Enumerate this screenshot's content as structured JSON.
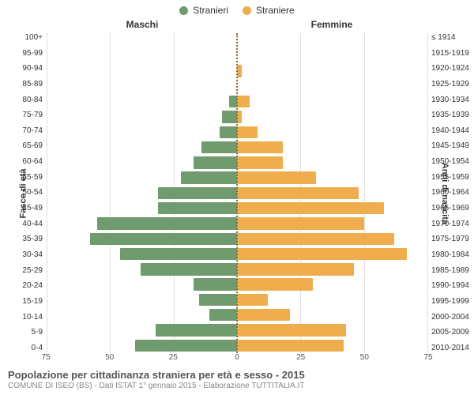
{
  "legend": {
    "items": [
      {
        "label": "Stranieri",
        "color": "#6f9b6e"
      },
      {
        "label": "Straniere",
        "color": "#f0ad4e"
      }
    ]
  },
  "headers": {
    "left": "Maschi",
    "right": "Femmine"
  },
  "yaxis": {
    "left_label": "Fasce di età",
    "right_label": "Anni di nascita"
  },
  "chart": {
    "type": "population-pyramid",
    "xlim": 75,
    "xtick_step": 25,
    "grid_color": "#e0e0e0",
    "center_line_color": "#8a6d3b",
    "bar_height_pct": 80,
    "male_color": "#6f9b6e",
    "female_color": "#f0ad4e",
    "rows": [
      {
        "age": "100+",
        "year": "≤ 1914",
        "m": 0,
        "f": 0
      },
      {
        "age": "95-99",
        "year": "1915-1919",
        "m": 0,
        "f": 0
      },
      {
        "age": "90-94",
        "year": "1920-1924",
        "m": 0,
        "f": 2
      },
      {
        "age": "85-89",
        "year": "1925-1929",
        "m": 0,
        "f": 0
      },
      {
        "age": "80-84",
        "year": "1930-1934",
        "m": 3,
        "f": 5
      },
      {
        "age": "75-79",
        "year": "1935-1939",
        "m": 6,
        "f": 2
      },
      {
        "age": "70-74",
        "year": "1940-1944",
        "m": 7,
        "f": 8
      },
      {
        "age": "65-69",
        "year": "1945-1949",
        "m": 14,
        "f": 18
      },
      {
        "age": "60-64",
        "year": "1950-1954",
        "m": 17,
        "f": 18
      },
      {
        "age": "55-59",
        "year": "1955-1959",
        "m": 22,
        "f": 31
      },
      {
        "age": "50-54",
        "year": "1960-1964",
        "m": 31,
        "f": 48
      },
      {
        "age": "45-49",
        "year": "1965-1969",
        "m": 31,
        "f": 58
      },
      {
        "age": "40-44",
        "year": "1970-1974",
        "m": 55,
        "f": 50
      },
      {
        "age": "35-39",
        "year": "1975-1979",
        "m": 58,
        "f": 62
      },
      {
        "age": "30-34",
        "year": "1980-1984",
        "m": 46,
        "f": 67
      },
      {
        "age": "25-29",
        "year": "1985-1989",
        "m": 38,
        "f": 46
      },
      {
        "age": "20-24",
        "year": "1990-1994",
        "m": 17,
        "f": 30
      },
      {
        "age": "15-19",
        "year": "1995-1999",
        "m": 15,
        "f": 12
      },
      {
        "age": "10-14",
        "year": "2000-2004",
        "m": 11,
        "f": 21
      },
      {
        "age": "5-9",
        "year": "2005-2009",
        "m": 32,
        "f": 43
      },
      {
        "age": "0-4",
        "year": "2010-2014",
        "m": 40,
        "f": 42
      }
    ]
  },
  "footer": {
    "title": "Popolazione per cittadinanza straniera per età e sesso - 2015",
    "subtitle": "COMUNE DI ISEO (BS) - Dati ISTAT 1° gennaio 2015 - Elaborazione TUTTITALIA.IT"
  }
}
